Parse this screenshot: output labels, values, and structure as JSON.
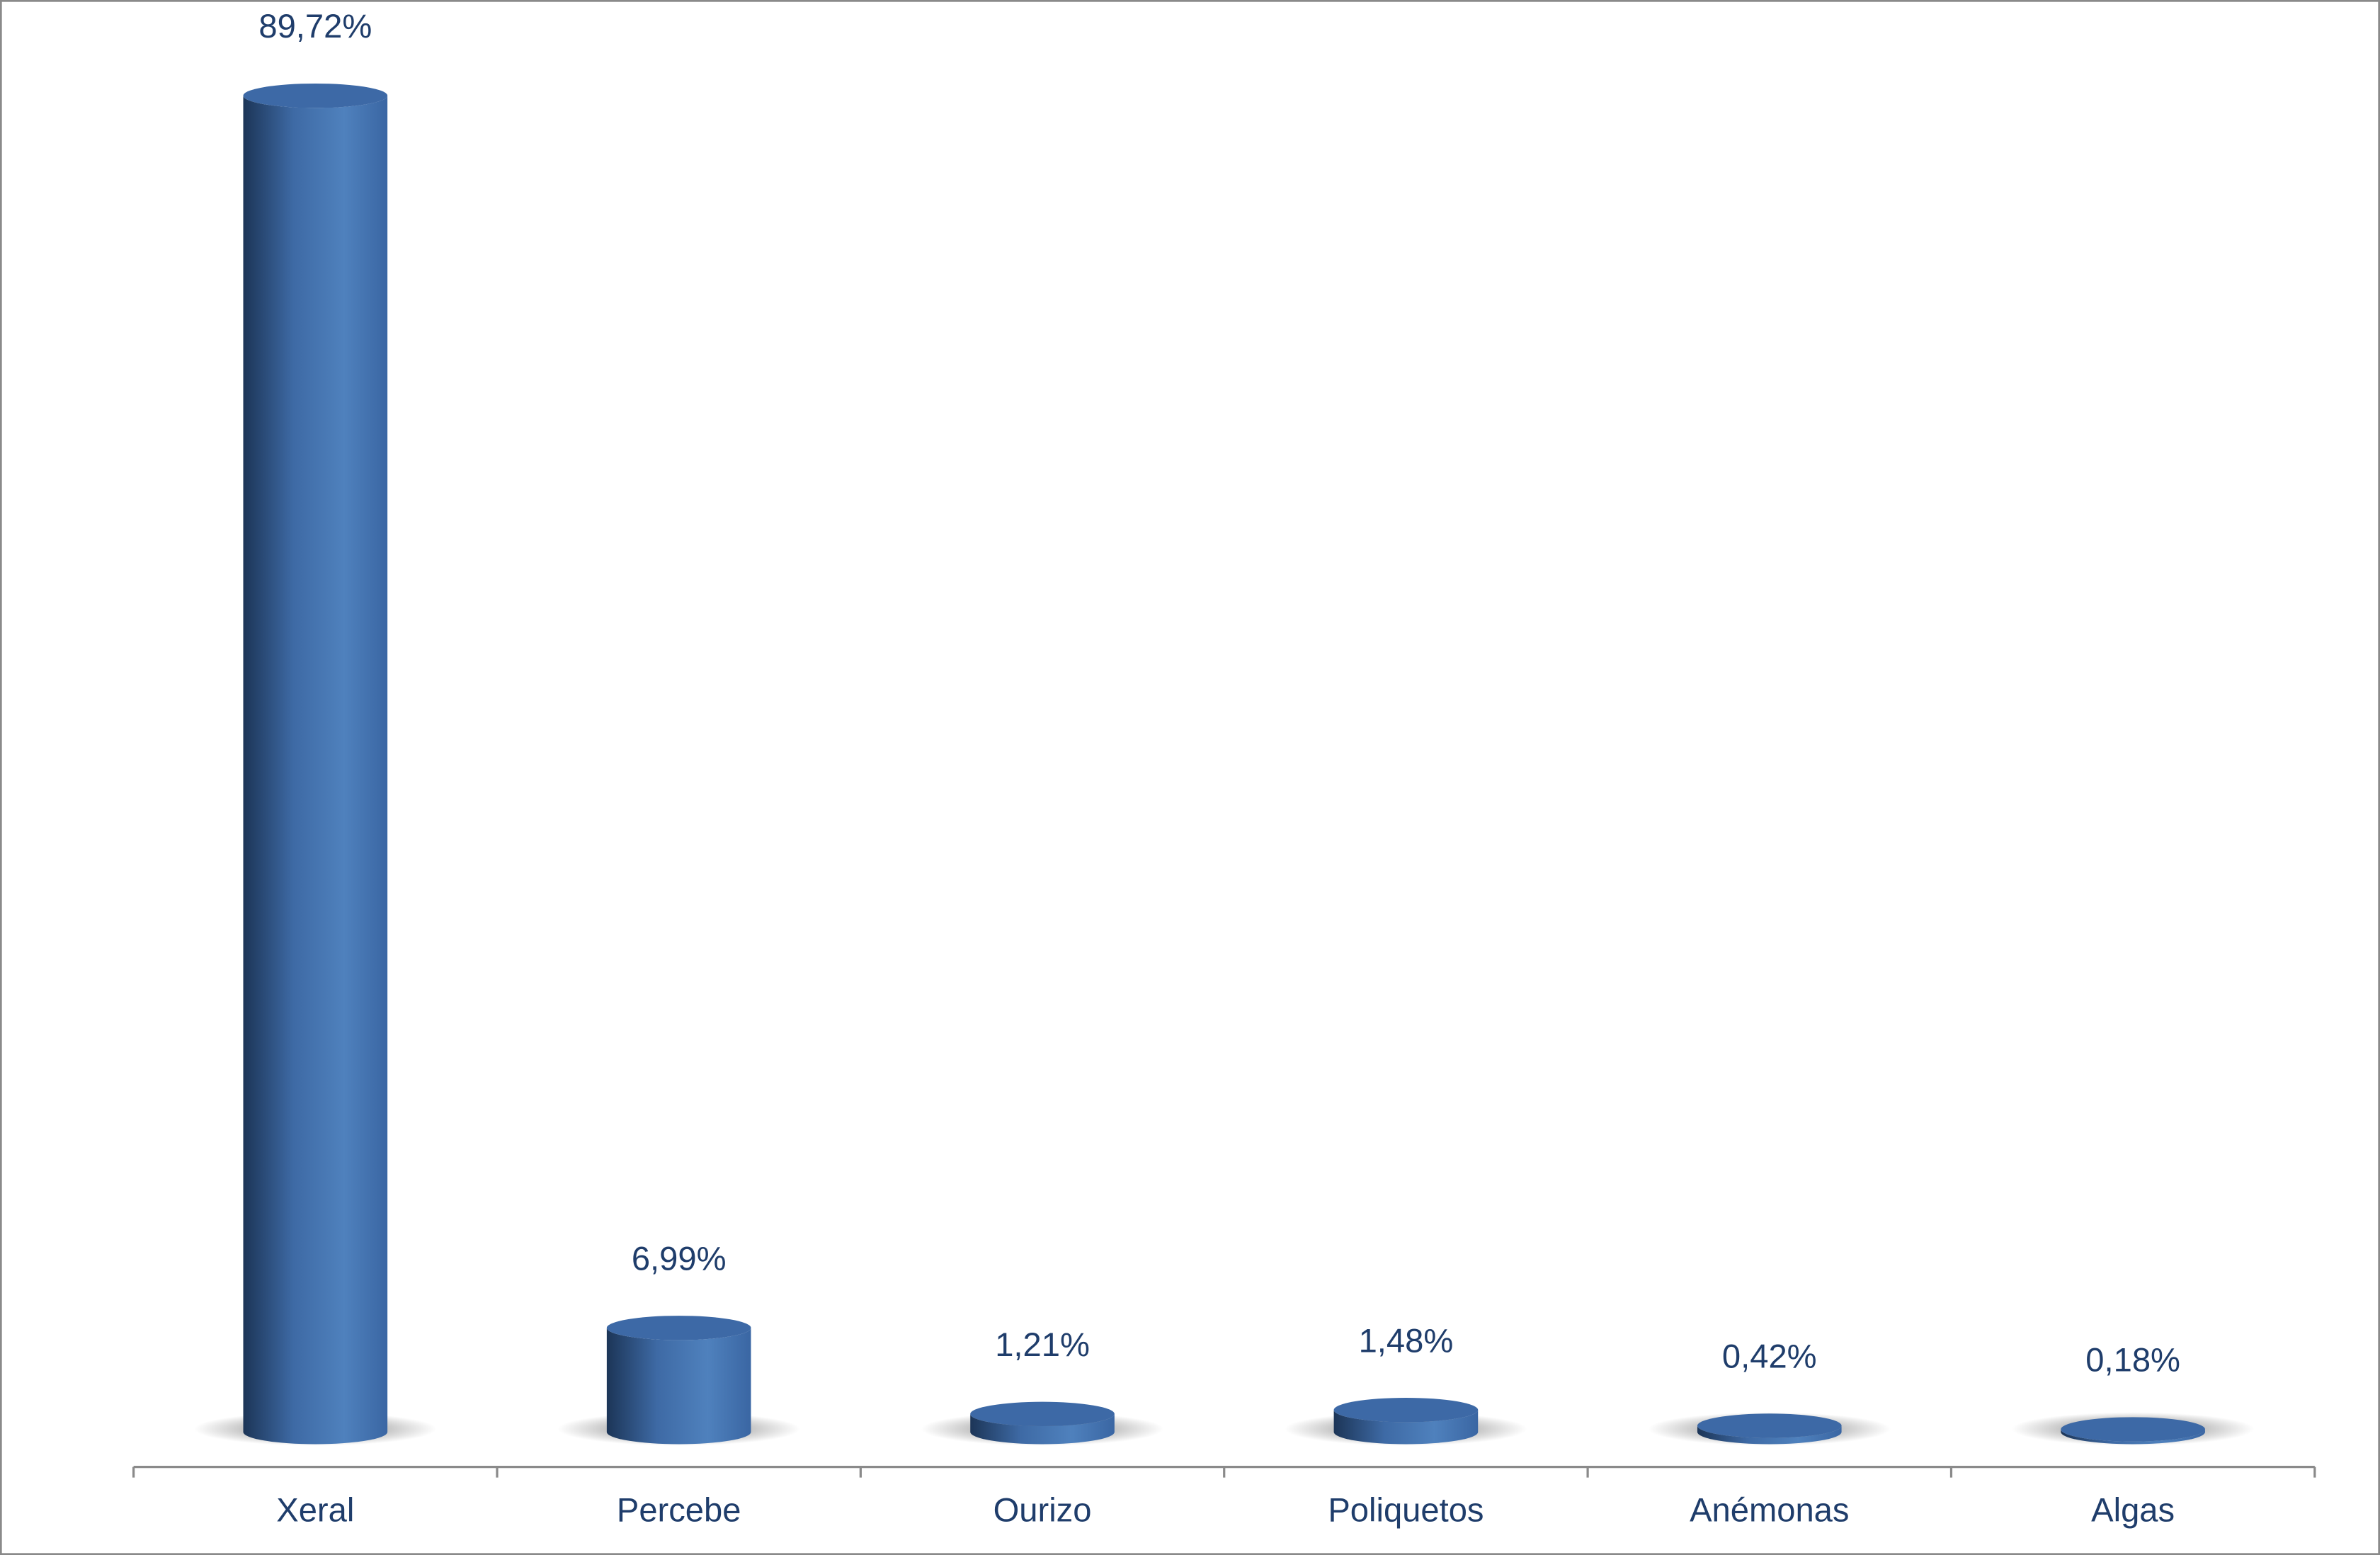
{
  "chart_data": {
    "type": "bar",
    "categories": [
      "Xeral",
      "Percebe",
      "Ourizo",
      "Poliquetos",
      "Anémonas",
      "Algas"
    ],
    "values": [
      89.72,
      6.99,
      1.21,
      1.48,
      0.42,
      0.18
    ],
    "value_labels": [
      "89,72%",
      "6,99%",
      "1,21%",
      "1,48%",
      "0,42%",
      "0,18%"
    ],
    "color": "#4f81bd"
  }
}
